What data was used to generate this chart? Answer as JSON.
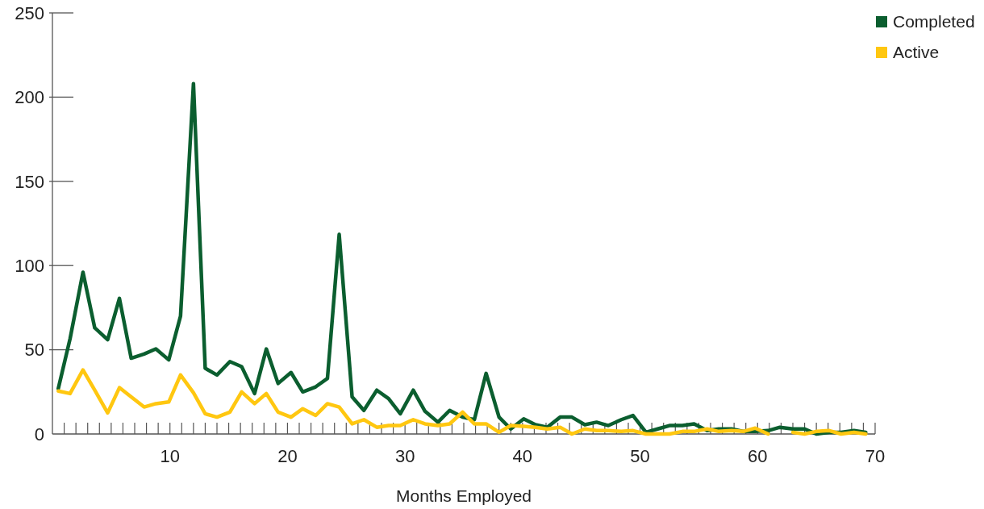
{
  "chart_data": {
    "type": "line",
    "xlabel": "Months Employed",
    "x": [
      0.5,
      1.5,
      2.6,
      3.6,
      4.7,
      5.7,
      6.7,
      7.8,
      8.8,
      9.9,
      10.9,
      12.0,
      13.0,
      14.0,
      15.1,
      16.1,
      17.2,
      18.2,
      19.2,
      20.3,
      21.3,
      22.4,
      23.4,
      24.4,
      25.5,
      26.5,
      27.6,
      28.6,
      29.6,
      30.7,
      31.7,
      32.8,
      33.8,
      34.9,
      35.9,
      36.9,
      38.0,
      39.0,
      40.1,
      41.1,
      42.1,
      43.2,
      44.2,
      45.3,
      46.3,
      47.3,
      48.4,
      49.4,
      50.5,
      51.5,
      52.5,
      53.6,
      54.6,
      55.7,
      56.7,
      57.8,
      58.8,
      59.8,
      60.9,
      61.9,
      63.0,
      64.0,
      65.0,
      66.1,
      67.1,
      68.2,
      69.2
    ],
    "series": [
      {
        "name": "Completed",
        "color": "#0b5e2f",
        "values": [
          27,
          56.5,
          96,
          63,
          56,
          80.5,
          45,
          47.5,
          50.5,
          44,
          70,
          208,
          39,
          35,
          43,
          40,
          24,
          50.5,
          30,
          36.5,
          25,
          28,
          33,
          118.5,
          22,
          14,
          26,
          21,
          12,
          26,
          13.5,
          7,
          14,
          10,
          8.5,
          36,
          10,
          3,
          9,
          5.5,
          4,
          10,
          10,
          5.5,
          7,
          5,
          8.5,
          11,
          1,
          3,
          5,
          5,
          6,
          2,
          3,
          3,
          1.5,
          1.5,
          2,
          4,
          3,
          3,
          0,
          1,
          1,
          2,
          1
        ]
      },
      {
        "name": "Active",
        "color": "#ffc710",
        "values": [
          25.5,
          24,
          38,
          26,
          12.5,
          27.5,
          22,
          16,
          18,
          19,
          35,
          24.5,
          12,
          10,
          13,
          25,
          18,
          24,
          13,
          10,
          15,
          11,
          18,
          16,
          6,
          8.5,
          4,
          5,
          5,
          8.5,
          6,
          5,
          6,
          13,
          6,
          6,
          1,
          5,
          4.5,
          4,
          3,
          4,
          0,
          3,
          2,
          2,
          1.5,
          2,
          0,
          0,
          0,
          1.5,
          1.5,
          3,
          1.5,
          2,
          1.5,
          3.5,
          0,
          null,
          1,
          0,
          1.5,
          2,
          0,
          1,
          0
        ]
      }
    ],
    "xlim": [
      0,
      70
    ],
    "xticks": [
      {
        "value": 0,
        "label": null
      },
      {
        "value": 1,
        "label": null
      },
      {
        "value": 2,
        "label": null
      },
      {
        "value": 3,
        "label": null
      },
      {
        "value": 4,
        "label": null
      },
      {
        "value": 5,
        "label": null
      },
      {
        "value": 6,
        "label": null
      },
      {
        "value": 7,
        "label": null
      },
      {
        "value": 8,
        "label": null
      },
      {
        "value": 9,
        "label": null
      },
      10,
      {
        "value": 11,
        "label": null
      },
      {
        "value": 12,
        "label": null
      },
      {
        "value": 13,
        "label": null
      },
      {
        "value": 14,
        "label": null
      },
      {
        "value": 15,
        "label": null
      },
      {
        "value": 16,
        "label": null
      },
      {
        "value": 17,
        "label": null
      },
      {
        "value": 18,
        "label": null
      },
      {
        "value": 19,
        "label": null
      },
      20,
      {
        "value": 21,
        "label": null
      },
      {
        "value": 22,
        "label": null
      },
      {
        "value": 23,
        "label": null
      },
      {
        "value": 24,
        "label": null
      },
      {
        "value": 25,
        "label": null
      },
      {
        "value": 26,
        "label": null
      },
      {
        "value": 27,
        "label": null
      },
      {
        "value": 28,
        "label": null
      },
      {
        "value": 29,
        "label": null
      },
      30,
      {
        "value": 31,
        "label": null
      },
      {
        "value": 32,
        "label": null
      },
      {
        "value": 33,
        "label": null
      },
      {
        "value": 34,
        "label": null
      },
      {
        "value": 35,
        "label": null
      },
      {
        "value": 36,
        "label": null
      },
      {
        "value": 37,
        "label": null
      },
      {
        "value": 38,
        "label": null
      },
      {
        "value": 39,
        "label": null
      },
      40,
      {
        "value": 41,
        "label": null
      },
      {
        "value": 42,
        "label": null
      },
      {
        "value": 43,
        "label": null
      },
      {
        "value": 44,
        "label": null
      },
      {
        "value": 45,
        "label": null
      },
      {
        "value": 46,
        "label": null
      },
      {
        "value": 47,
        "label": null
      },
      {
        "value": 48,
        "label": null
      },
      {
        "value": 49,
        "label": null
      },
      50,
      {
        "value": 51,
        "label": null
      },
      {
        "value": 52,
        "label": null
      },
      {
        "value": 53,
        "label": null
      },
      {
        "value": 54,
        "label": null
      },
      {
        "value": 55,
        "label": null
      },
      {
        "value": 56,
        "label": null
      },
      {
        "value": 57,
        "label": null
      },
      {
        "value": 58,
        "label": null
      },
      {
        "value": 59,
        "label": null
      },
      60,
      {
        "value": 61,
        "label": null
      },
      {
        "value": 62,
        "label": null
      },
      {
        "value": 63,
        "label": null
      },
      {
        "value": 64,
        "label": null
      },
      {
        "value": 65,
        "label": null
      },
      {
        "value": 66,
        "label": null
      },
      {
        "value": 67,
        "label": null
      },
      {
        "value": 68,
        "label": null
      },
      {
        "value": 69,
        "label": null
      },
      70
    ],
    "ylim": [
      0,
      250
    ],
    "yticks": [
      0,
      50,
      100,
      150,
      200,
      250
    ],
    "grid": false,
    "legend": "top right",
    "marker": "none",
    "line_style": "solid"
  }
}
